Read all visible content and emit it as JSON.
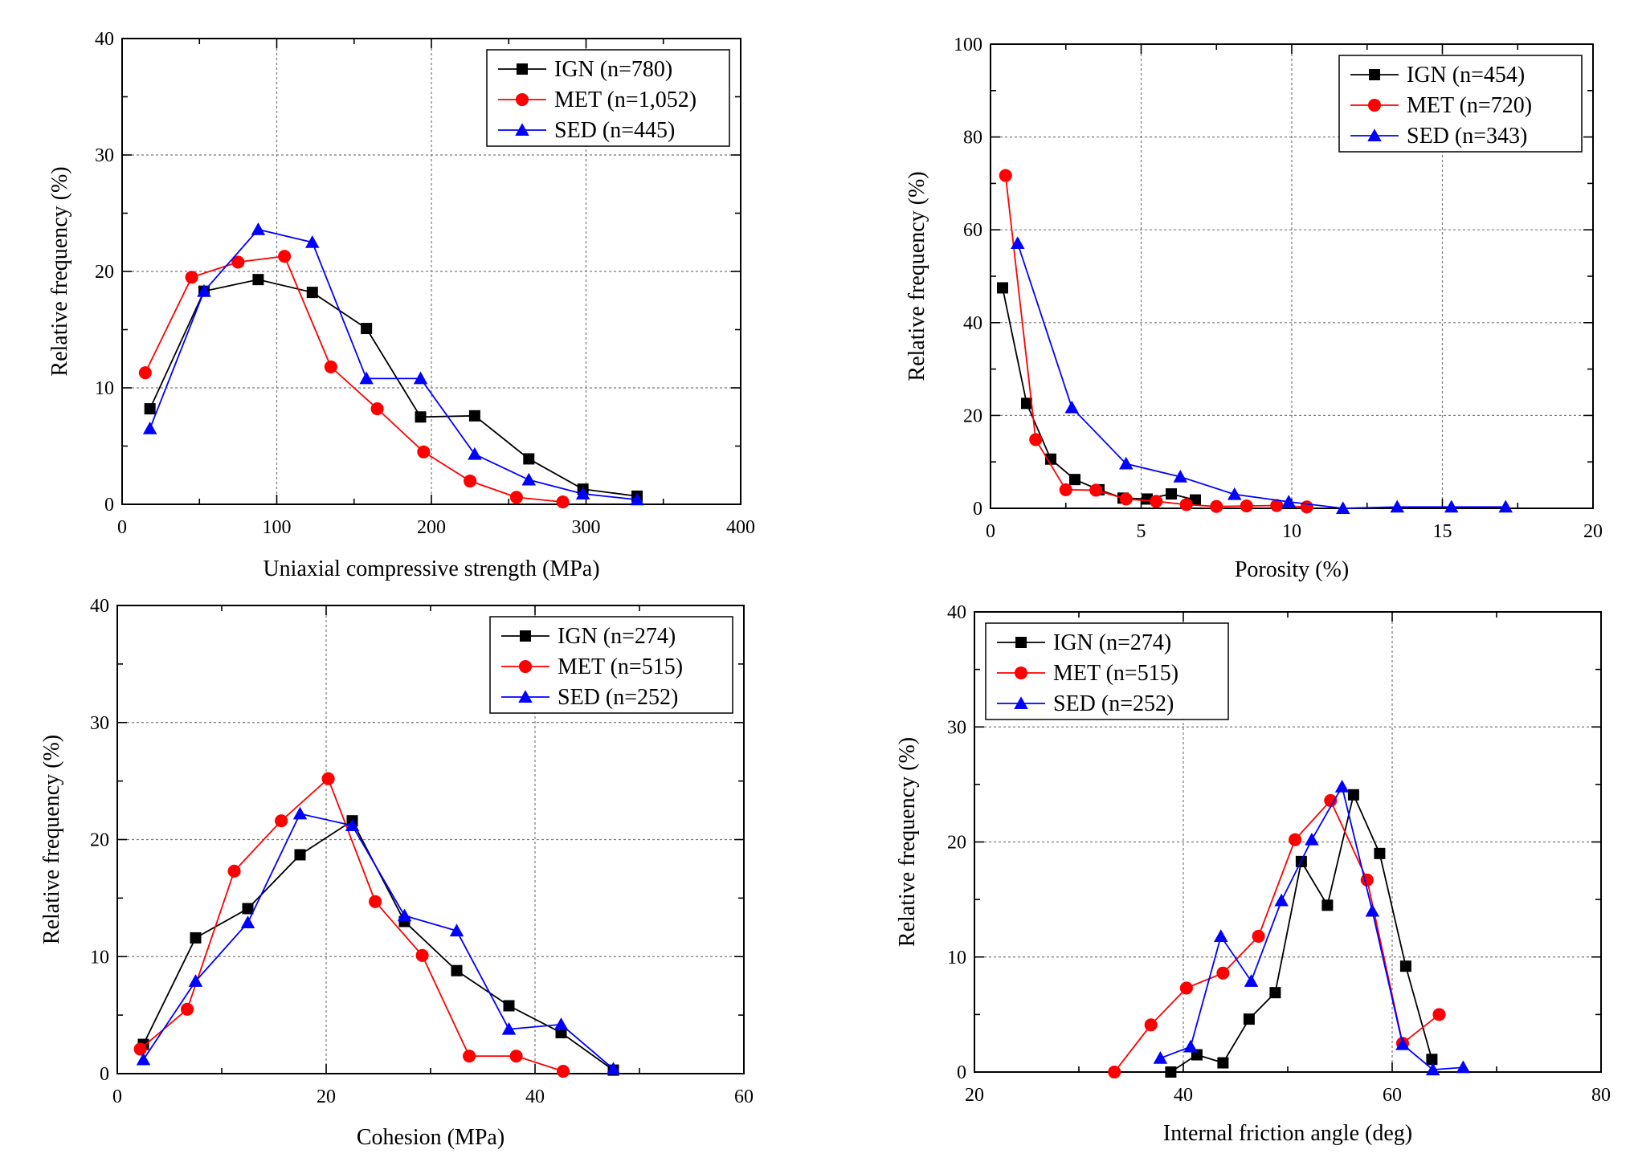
{
  "chart_data": [
    {
      "type": "line",
      "xlabel": "Uniaxial compressive strength (MPa)",
      "ylabel": "Relative frequency (%)",
      "xlim": [
        0,
        400
      ],
      "ylim": [
        0,
        40
      ],
      "xticks": [
        0,
        100,
        200,
        300,
        400
      ],
      "xtick_labels": [
        "0",
        "100",
        "200",
        "300",
        "400"
      ],
      "yticks": [
        0,
        10,
        20,
        30,
        40
      ],
      "ytick_labels": [
        "0",
        "10",
        "20",
        "30",
        "40"
      ],
      "grid": true,
      "legend": "top-right",
      "series": [
        {
          "name": "IGN (n=780)",
          "color": "#000000",
          "marker": "square",
          "x": [
            18,
            53,
            88,
            123,
            158,
            193,
            228,
            263,
            298,
            333
          ],
          "y": [
            8.2,
            18.3,
            19.3,
            18.2,
            15.1,
            7.5,
            7.6,
            3.9,
            1.3,
            0.7
          ]
        },
        {
          "name": "MET (n=1,052)",
          "color": "#ff0000",
          "marker": "circle",
          "x": [
            15,
            45,
            75,
            105,
            135,
            165,
            195,
            225,
            255,
            285
          ],
          "y": [
            11.3,
            19.5,
            20.8,
            21.3,
            11.8,
            8.2,
            4.5,
            2.0,
            0.6,
            0.2
          ]
        },
        {
          "name": "SED (n=445)",
          "color": "#0000ff",
          "marker": "triangle",
          "x": [
            18,
            53,
            88,
            123,
            158,
            193,
            228,
            263,
            298,
            333
          ],
          "y": [
            6.5,
            18.3,
            23.6,
            22.5,
            10.8,
            10.8,
            4.3,
            2.1,
            0.9,
            0.4
          ]
        }
      ]
    },
    {
      "type": "line",
      "xlabel": "Porosity (%)",
      "ylabel": "Relative frequency (%)",
      "xlim": [
        0,
        20
      ],
      "ylim": [
        0,
        100
      ],
      "xticks": [
        0,
        5,
        10,
        15,
        20
      ],
      "xtick_labels": [
        "0",
        "5",
        "10",
        "15",
        "20"
      ],
      "yticks": [
        0,
        20,
        40,
        60,
        80,
        100
      ],
      "ytick_labels": [
        "0",
        "20",
        "40",
        "60",
        "80",
        "100"
      ],
      "grid": true,
      "legend": "top-right",
      "series": [
        {
          "name": "IGN (n=454)",
          "color": "#000000",
          "marker": "square",
          "x": [
            0.4,
            1.2,
            2.0,
            2.8,
            3.6,
            4.4,
            5.2,
            6.0,
            6.8
          ],
          "y": [
            47.5,
            22.6,
            10.6,
            6.2,
            4.0,
            2.2,
            2.0,
            3.1,
            1.8
          ]
        },
        {
          "name": "MET (n=720)",
          "color": "#ff0000",
          "marker": "circle",
          "x": [
            0.5,
            1.5,
            2.5,
            3.5,
            4.5,
            5.5,
            6.5,
            7.5,
            8.5,
            9.5,
            10.5
          ],
          "y": [
            71.7,
            14.8,
            4.0,
            3.9,
            2.0,
            1.5,
            0.8,
            0.4,
            0.5,
            0.6,
            0.3
          ]
        },
        {
          "name": "SED (n=343)",
          "color": "#0000ff",
          "marker": "triangle",
          "x": [
            0.9,
            2.7,
            4.5,
            6.3,
            8.1,
            9.9,
            11.7,
            13.5,
            15.3,
            17.1
          ],
          "y": [
            57.1,
            21.7,
            9.6,
            6.8,
            3.0,
            1.4,
            0.0,
            0.3,
            0.3,
            0.3
          ]
        }
      ]
    },
    {
      "type": "line",
      "xlabel": "Cohesion (MPa)",
      "ylabel": "Relative frequency (%)",
      "xlim": [
        0,
        60
      ],
      "ylim": [
        0,
        40
      ],
      "xticks": [
        0,
        20,
        40,
        60
      ],
      "xtick_labels": [
        "0",
        "20",
        "40",
        "60"
      ],
      "yticks": [
        0,
        10,
        20,
        30,
        40
      ],
      "ytick_labels": [
        "0",
        "10",
        "20",
        "30",
        "40"
      ],
      "grid": true,
      "legend": "top-right",
      "series": [
        {
          "name": "IGN (n=274)",
          "color": "#000000",
          "marker": "square",
          "x": [
            2.5,
            7.5,
            12.5,
            17.5,
            22.5,
            27.5,
            32.5,
            37.5,
            42.5,
            47.5
          ],
          "y": [
            2.5,
            11.6,
            14.1,
            18.7,
            21.6,
            13.0,
            8.8,
            5.8,
            3.5,
            0.3
          ]
        },
        {
          "name": "MET (n=515)",
          "color": "#ff0000",
          "marker": "circle",
          "x": [
            2.2,
            6.7,
            11.2,
            15.7,
            20.2,
            24.7,
            29.2,
            33.7,
            38.2,
            42.7
          ],
          "y": [
            2.1,
            5.5,
            17.3,
            21.6,
            25.2,
            14.7,
            10.1,
            1.5,
            1.5,
            0.2
          ]
        },
        {
          "name": "SED (n=252)",
          "color": "#0000ff",
          "marker": "triangle",
          "x": [
            2.5,
            7.5,
            12.5,
            17.5,
            22.5,
            27.5,
            32.5,
            37.5,
            42.5,
            47.5
          ],
          "y": [
            1.2,
            7.9,
            12.9,
            22.2,
            21.2,
            13.5,
            12.2,
            3.8,
            4.2,
            0.4
          ]
        }
      ]
    },
    {
      "type": "line",
      "xlabel": "Internal friction angle (deg)",
      "ylabel": "Relative frequency (%)",
      "xlim": [
        20,
        80
      ],
      "ylim": [
        0,
        40
      ],
      "xticks": [
        20,
        40,
        60,
        80
      ],
      "xtick_labels": [
        "20",
        "40",
        "60",
        "80"
      ],
      "yticks": [
        0,
        10,
        20,
        30,
        40
      ],
      "ytick_labels": [
        "0",
        "10",
        "20",
        "30",
        "40"
      ],
      "grid": true,
      "legend": "top-left",
      "series": [
        {
          "name": "IGN (n=274)",
          "color": "#000000",
          "marker": "square",
          "x": [
            38.8,
            41.3,
            43.8,
            46.3,
            48.8,
            51.3,
            53.8,
            56.3,
            58.8,
            61.3,
            63.8
          ],
          "y": [
            0.0,
            1.5,
            0.8,
            4.6,
            6.9,
            18.3,
            14.5,
            24.1,
            19.0,
            9.2,
            1.1
          ]
        },
        {
          "name": "MET (n=515)",
          "color": "#ff0000",
          "marker": "circle",
          "x": [
            33.4,
            36.9,
            40.3,
            43.8,
            47.2,
            50.7,
            54.1,
            57.6,
            61.0,
            64.5
          ],
          "y": [
            0.0,
            4.1,
            7.3,
            8.6,
            11.8,
            20.2,
            23.6,
            16.7,
            2.5,
            5.0
          ]
        },
        {
          "name": "SED (n=252)",
          "color": "#0000ff",
          "marker": "triangle",
          "x": [
            37.8,
            40.7,
            43.6,
            46.5,
            49.4,
            52.3,
            55.2,
            58.1,
            61.0,
            63.9,
            66.8
          ],
          "y": [
            1.2,
            2.2,
            11.8,
            7.9,
            14.9,
            20.2,
            24.8,
            14.0,
            2.4,
            0.2,
            0.4
          ]
        }
      ]
    }
  ]
}
